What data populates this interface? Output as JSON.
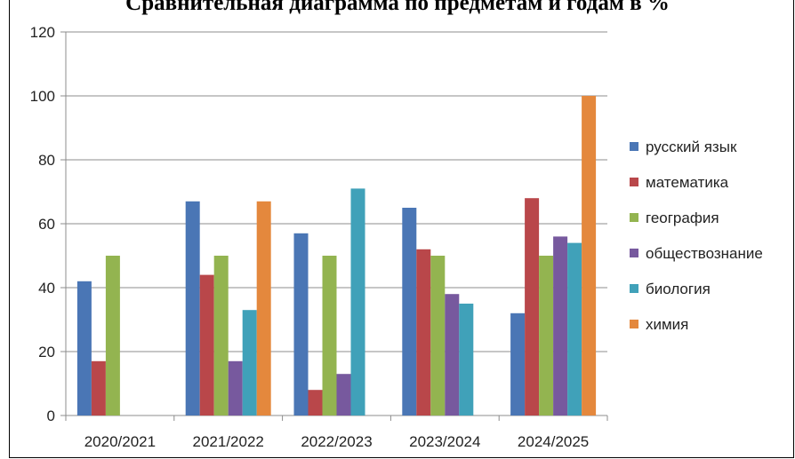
{
  "chart_data": {
    "type": "bar",
    "title": "Сравнительная диаграмма по предметам и годам в %",
    "categories": [
      "2020/2021",
      "2021/2022",
      "2022/2023",
      "2023/2024",
      "2024/2025"
    ],
    "series": [
      {
        "name": "русский язык",
        "color": "#4a76b5",
        "values": [
          42,
          67,
          57,
          65,
          32
        ]
      },
      {
        "name": "математика",
        "color": "#b9474a",
        "values": [
          17,
          44,
          8,
          52,
          68
        ]
      },
      {
        "name": "география",
        "color": "#93b450",
        "values": [
          50,
          50,
          50,
          50,
          50
        ]
      },
      {
        "name": "обществознание",
        "color": "#77599e",
        "values": [
          null,
          17,
          13,
          38,
          56
        ]
      },
      {
        "name": "биология",
        "color": "#40a1b9",
        "values": [
          null,
          33,
          71,
          35,
          54
        ]
      },
      {
        "name": "химия",
        "color": "#e4883d",
        "values": [
          null,
          67,
          null,
          null,
          100
        ]
      }
    ],
    "ylim": [
      0,
      120
    ],
    "yticks": [
      0,
      20,
      40,
      60,
      80,
      100,
      120
    ],
    "grid": "horizontal",
    "legend": "right"
  }
}
